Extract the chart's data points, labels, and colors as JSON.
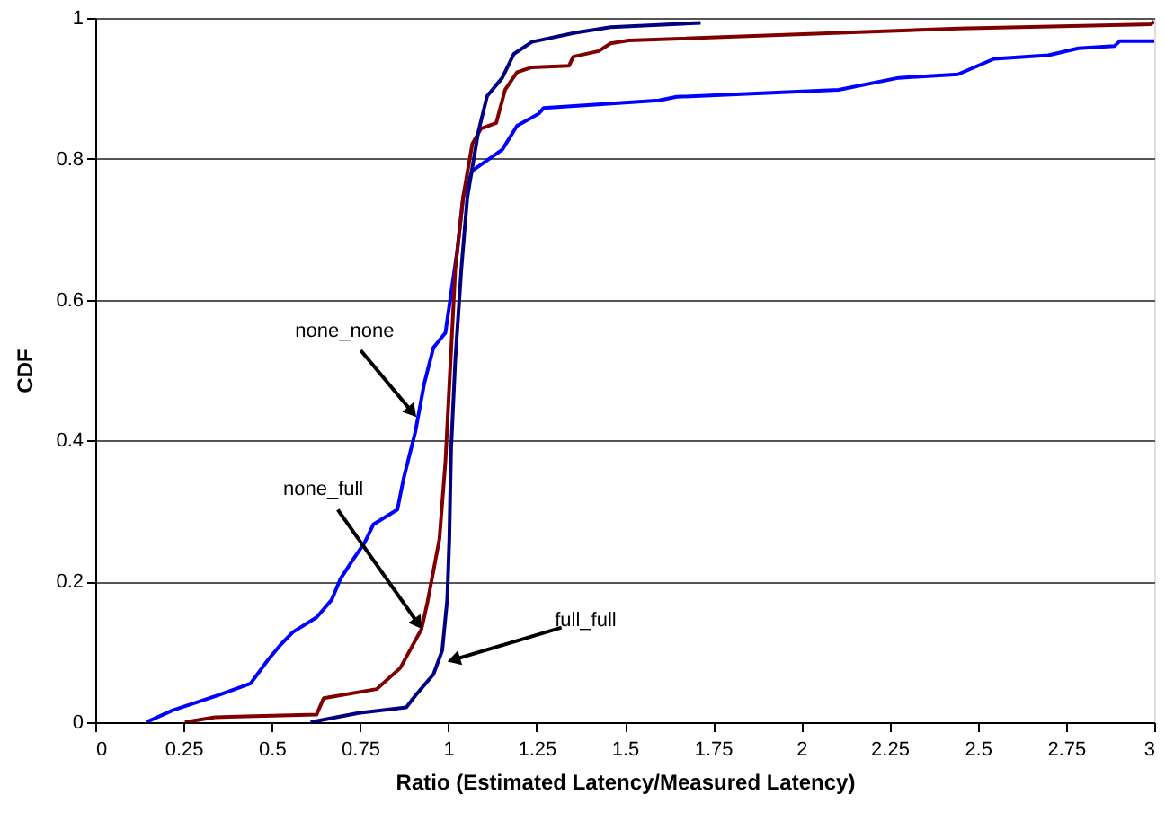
{
  "chart_data": {
    "type": "line",
    "xlabel": "Ratio (Estimated Latency/Measured Latency)",
    "ylabel": "CDF",
    "xlim": [
      0,
      3
    ],
    "xticks": [
      0,
      0.25,
      0.5,
      0.75,
      1,
      1.25,
      1.5,
      1.75,
      2,
      2.25,
      2.5,
      2.75,
      3
    ],
    "ylim": [
      0,
      1
    ],
    "yticks": [
      0,
      0.2,
      0.4,
      0.6,
      0.8,
      1
    ],
    "grid": "y",
    "line_style": "solid",
    "marker": "none",
    "series": [
      {
        "color": "#0000ff",
        "x": [
          0.144,
          0.22,
          0.347,
          0.44,
          0.49,
          0.525,
          0.56,
          0.627,
          0.67,
          0.695,
          0.729,
          0.763,
          0.788,
          0.856,
          0.873,
          0.907,
          0.932,
          0.958,
          0.992,
          1.008,
          1.025,
          1.042,
          1.068,
          1.153,
          1.195,
          1.256,
          1.27,
          1.597,
          1.647,
          2.106,
          2.276,
          2.444,
          2.546,
          2.7,
          2.785,
          2.887,
          2.902,
          3.0
        ],
        "values": [
          0,
          0.017,
          0.038,
          0.055,
          0.089,
          0.11,
          0.128,
          0.149,
          0.174,
          0.204,
          0.23,
          0.255,
          0.281,
          0.302,
          0.345,
          0.413,
          0.481,
          0.532,
          0.553,
          0.609,
          0.668,
          0.745,
          0.783,
          0.813,
          0.847,
          0.864,
          0.872,
          0.883,
          0.888,
          0.898,
          0.915,
          0.92,
          0.942,
          0.947,
          0.957,
          0.96,
          0.967,
          0.967
        ]
      },
      {
        "color": "#800000",
        "x": [
          0.254,
          0.339,
          0.627,
          0.647,
          0.797,
          0.864,
          0.924,
          0.941,
          0.975,
          0.992,
          1.005,
          1.02,
          1.042,
          1.068,
          1.093,
          1.136,
          1.161,
          1.195,
          1.237,
          1.342,
          1.354,
          1.426,
          1.46,
          1.511,
          2.444,
          2.99,
          3.0
        ],
        "values": [
          0,
          0.007,
          0.011,
          0.034,
          0.047,
          0.077,
          0.132,
          0.17,
          0.26,
          0.37,
          0.498,
          0.643,
          0.745,
          0.821,
          0.843,
          0.851,
          0.898,
          0.923,
          0.93,
          0.932,
          0.945,
          0.953,
          0.964,
          0.968,
          0.985,
          0.991,
          0.995
        ]
      },
      {
        "color": "#000080",
        "x": [
          0.61,
          0.746,
          0.881,
          0.907,
          0.958,
          0.983,
          0.997,
          1.003,
          1.008,
          1.02,
          1.037,
          1.054,
          1.085,
          1.11,
          1.153,
          1.186,
          1.237,
          1.359,
          1.46,
          1.715
        ],
        "values": [
          0,
          0.013,
          0.021,
          0.038,
          0.068,
          0.102,
          0.174,
          0.26,
          0.387,
          0.515,
          0.643,
          0.745,
          0.838,
          0.889,
          0.915,
          0.949,
          0.966,
          0.979,
          0.987,
          0.993
        ]
      }
    ],
    "annotations": [
      {
        "text": "none_none",
        "x": 0.91,
        "y": 0.433
      },
      {
        "text": "none_full",
        "x": 0.926,
        "y": 0.132
      },
      {
        "text": "full_full",
        "x": 0.997,
        "y": 0.086
      }
    ]
  }
}
